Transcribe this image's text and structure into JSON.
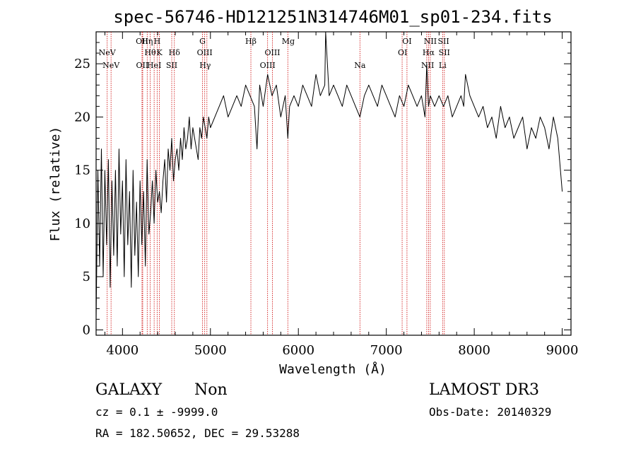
{
  "title": "spec-56746-HD121251N314746M01_sp01-234.fits",
  "info": {
    "class": "GALAXY",
    "subclass": "Non",
    "survey": "LAMOST DR3",
    "cz": "cz = 0.1 ± -9999.0",
    "obs_date": "Obs-Date: 20140329",
    "radec": "RA = 182.50652, DEC =  29.53288"
  },
  "chart_data": {
    "type": "line",
    "xlabel": "Wavelength (Å)",
    "ylabel": "Flux (relative)",
    "xlim": [
      3700,
      9100
    ],
    "ylim": [
      -0.5,
      28
    ],
    "x_ticks": [
      4000,
      5000,
      6000,
      7000,
      8000,
      9000
    ],
    "y_ticks": [
      0,
      5,
      10,
      15,
      20,
      25
    ],
    "line_color": "#000000",
    "marker_color": "#cc0000",
    "spectrum": {
      "x": [
        3700,
        3720,
        3740,
        3760,
        3780,
        3800,
        3820,
        3840,
        3860,
        3880,
        3900,
        3920,
        3940,
        3960,
        3980,
        4000,
        4020,
        4040,
        4060,
        4080,
        4100,
        4120,
        4140,
        4160,
        4180,
        4200,
        4220,
        4240,
        4260,
        4280,
        4300,
        4320,
        4340,
        4360,
        4380,
        4400,
        4420,
        4440,
        4460,
        4480,
        4500,
        4520,
        4540,
        4560,
        4580,
        4600,
        4620,
        4640,
        4660,
        4680,
        4700,
        4720,
        4740,
        4760,
        4780,
        4800,
        4820,
        4840,
        4860,
        4880,
        4900,
        4920,
        4940,
        4960,
        4980,
        5000,
        5050,
        5100,
        5150,
        5200,
        5250,
        5300,
        5350,
        5400,
        5450,
        5500,
        5530,
        5560,
        5600,
        5650,
        5700,
        5750,
        5800,
        5850,
        5880,
        5900,
        5950,
        6000,
        6050,
        6100,
        6150,
        6200,
        6250,
        6300,
        6310,
        6350,
        6400,
        6450,
        6500,
        6550,
        6600,
        6650,
        6700,
        6750,
        6800,
        6850,
        6900,
        6950,
        7000,
        7050,
        7100,
        7150,
        7200,
        7250,
        7300,
        7350,
        7400,
        7440,
        7460,
        7480,
        7500,
        7550,
        7600,
        7650,
        7700,
        7750,
        7800,
        7850,
        7880,
        7900,
        7950,
        8000,
        8050,
        8100,
        8150,
        8200,
        8250,
        8300,
        8350,
        8400,
        8450,
        8500,
        8550,
        8600,
        8650,
        8700,
        8750,
        8800,
        8850,
        8900,
        8950,
        9000
      ],
      "y": [
        1,
        15,
        6,
        17,
        5,
        15,
        8,
        16,
        4,
        14,
        7,
        15,
        6,
        17,
        9,
        14,
        5,
        16,
        8,
        13,
        4,
        15,
        7,
        12,
        5,
        14,
        8,
        13,
        6,
        16,
        9,
        11,
        14,
        10,
        15,
        12,
        13,
        11,
        14,
        16,
        12,
        17,
        15,
        18,
        14,
        16,
        17,
        15,
        18,
        16,
        19,
        17,
        18,
        20,
        17,
        19,
        18,
        17,
        16,
        19,
        18,
        20,
        19,
        18,
        20,
        19,
        20,
        21,
        22,
        20,
        21,
        22,
        21,
        23,
        22,
        21,
        17,
        23,
        21,
        24,
        22,
        23,
        20,
        22,
        18,
        21,
        22,
        21,
        23,
        22,
        21,
        24,
        22,
        23,
        28,
        22,
        23,
        22,
        21,
        23,
        22,
        21,
        20,
        22,
        23,
        22,
        21,
        23,
        22,
        21,
        20,
        22,
        21,
        23,
        22,
        21,
        22,
        20,
        25,
        21,
        22,
        21,
        22,
        21,
        22,
        20,
        21,
        22,
        21,
        24,
        22,
        21,
        20,
        21,
        19,
        20,
        18,
        21,
        19,
        20,
        18,
        19,
        20,
        17,
        19,
        18,
        20,
        19,
        17,
        20,
        18,
        13
      ]
    },
    "line_markers": [
      {
        "label": "NeV",
        "x": 3826,
        "row": 2
      },
      {
        "label": "NeV",
        "x": 3870,
        "row": 3
      },
      {
        "label": "OII",
        "x": 4222,
        "row": 1
      },
      {
        "label": "Hη",
        "x": 4281,
        "row": 1
      },
      {
        "label": "H",
        "x": 4394,
        "row": 1
      },
      {
        "label": "Hθ",
        "x": 4315,
        "row": 2
      },
      {
        "label": "K",
        "x": 4420,
        "row": 2
      },
      {
        "label": "Hδ",
        "x": 4590,
        "row": 2
      },
      {
        "label": "OII",
        "x": 4225,
        "row": 3
      },
      {
        "label": "HeI",
        "x": 4360,
        "row": 3
      },
      {
        "label": "SII",
        "x": 4560,
        "row": 3
      },
      {
        "label": "G",
        "x": 4910,
        "row": 1
      },
      {
        "label": "OIII",
        "x": 4935,
        "row": 2
      },
      {
        "label": "Hγ",
        "x": 4940,
        "row": 3
      },
      {
        "label": "Hβ",
        "x": 5460,
        "row": 1
      },
      {
        "label": "OIII",
        "x": 5705,
        "row": 2
      },
      {
        "label": "OIII",
        "x": 5650,
        "row": 3
      },
      {
        "label": "Mg",
        "x": 5885,
        "row": 1
      },
      {
        "label": "Na",
        "x": 6700,
        "row": 3
      },
      {
        "label": "OI",
        "x": 7235,
        "row": 1
      },
      {
        "label": "OI",
        "x": 7185,
        "row": 2
      },
      {
        "label": "NII",
        "x": 7500,
        "row": 1
      },
      {
        "label": "SII",
        "x": 7650,
        "row": 1
      },
      {
        "label": "Hα",
        "x": 7480,
        "row": 2
      },
      {
        "label": "SII",
        "x": 7660,
        "row": 2
      },
      {
        "label": "NII",
        "x": 7470,
        "row": 3
      },
      {
        "label": "Li",
        "x": 7640,
        "row": 3
      }
    ],
    "marker_lines_x": [
      3826,
      3870,
      4222,
      4230,
      4281,
      4315,
      4360,
      4394,
      4420,
      4560,
      4590,
      4910,
      4935,
      4960,
      5460,
      5650,
      5705,
      5880,
      6700,
      7180,
      7235,
      7460,
      7480,
      7500,
      7640,
      7660
    ]
  }
}
